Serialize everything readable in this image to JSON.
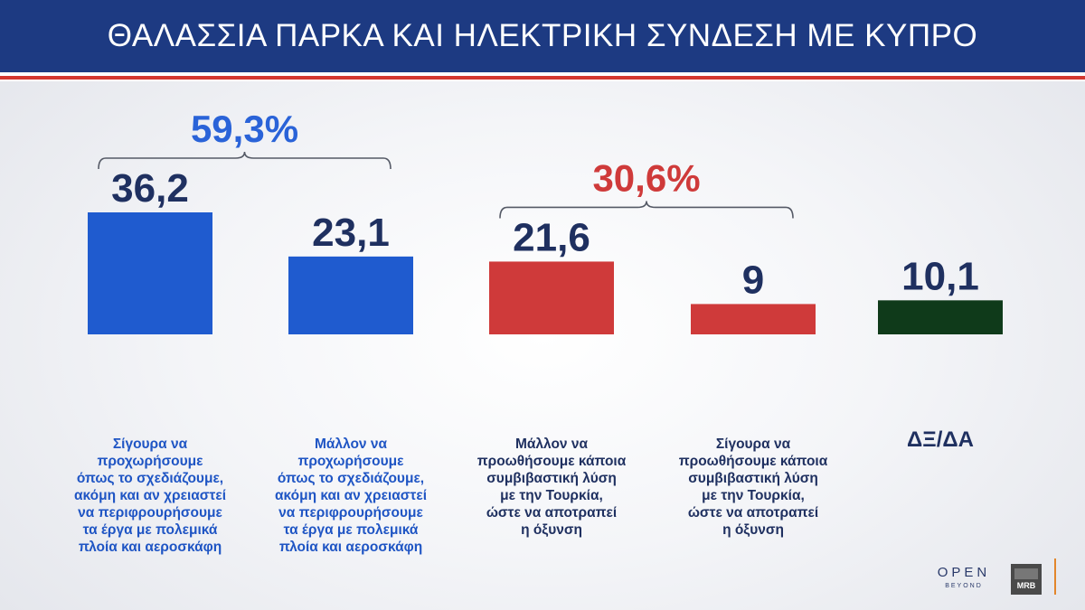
{
  "header": {
    "title": "ΘΑΛΑΣΣΙΑ ΠΑΡΚΑ ΚΑΙ ΗΛΕΚΤΡΙΚΗ ΣΥΝΔΕΣΗ ΜΕ ΚΥΠΡΟ"
  },
  "chart_data": {
    "type": "bar",
    "title": "ΘΑΛΑΣΣΙΑ ΠΑΡΚΑ ΚΑΙ ΗΛΕΚΤΡΙΚΗ ΣΥΝΔΕΣΗ ΜΕ ΚΥΠΡΟ",
    "categories": [
      "Σίγουρα να προχωρήσουμε όπως το σχεδιάζουμε, ακόμη και αν χρειαστεί να περιφρουρήσουμε τα έργα με πολεμικά πλοία και αεροσκάφη",
      "Μάλλον να προχωρήσουμε όπως το σχεδιάζουμε, ακόμη και αν χρειαστεί να περιφρουρήσουμε τα έργα με πολεμικά πλοία και αεροσκάφη",
      "Μάλλον να προωθήσουμε κάποια συμβιβαστική λύση με την Τουρκία, ώστε να αποτραπεί η όξυνση",
      "Σίγουρα να προωθήσουμε κάποια συμβιβαστική λύση με την Τουρκία, ώστε να αποτραπεί η όξυνση",
      "ΔΞ/ΔΑ"
    ],
    "values": [
      36.2,
      23.1,
      21.6,
      9,
      10.1
    ],
    "value_labels": [
      "36,2",
      "23,1",
      "21,6",
      "9",
      "10,1"
    ],
    "colors": [
      "#1f5bcf",
      "#1f5bcf",
      "#cf3a3a",
      "#cf3a3a",
      "#0f3a1a"
    ],
    "ylim": [
      0,
      36.2
    ],
    "groups": [
      {
        "label": "59,3%",
        "value": 59.3,
        "members": [
          0,
          1
        ],
        "color": "#2a63d8"
      },
      {
        "label": "30,6%",
        "value": 30.6,
        "members": [
          2,
          3
        ],
        "color": "#cf3a3a"
      }
    ]
  },
  "labels": {
    "bar0": [
      "Σίγουρα να προχωρήσουμε",
      "όπως το σχεδιάζουμε,",
      "ακόμη και αν χρειαστεί",
      "να περιφρουρήσουμε",
      "τα έργα με πολεμικά",
      "πλοία και αεροσκάφη"
    ],
    "bar1": [
      "Μάλλον να προχωρήσουμε",
      "όπως το σχεδιάζουμε,",
      "ακόμη και αν χρειαστεί",
      "να περιφρουρήσουμε",
      "τα έργα με πολεμικά",
      "πλοία και αεροσκάφη"
    ],
    "bar2": [
      "Μάλλον να",
      "προωθήσουμε κάποια",
      "συμβιβαστική λύση",
      "με την Τουρκία,",
      "ώστε να αποτραπεί",
      "η όξυνση"
    ],
    "bar3": [
      "Σίγουρα να",
      "προωθήσουμε κάποια",
      "συμβιβαστική λύση",
      "με την Τουρκία,",
      "ώστε να αποτραπεί",
      "η όξυνση"
    ],
    "bar4": "ΔΞ/ΔΑ"
  },
  "logos": {
    "open": "OPEN",
    "beyond": "BEYOND",
    "mrb": "MRB"
  }
}
